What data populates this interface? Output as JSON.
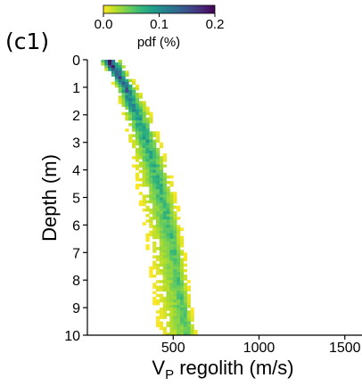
{
  "panel_label": "(c1)",
  "colorbar": {
    "label": "pdf (%)",
    "range": [
      0.0,
      0.2
    ],
    "ticks": [
      0.0,
      0.1,
      0.2
    ],
    "tick_labels": [
      "0.0",
      "0.1",
      "0.2"
    ],
    "colormap": "viridis-reversed",
    "stops": [
      "#fde725",
      "#b5de2b",
      "#6ece58",
      "#35b779",
      "#1f9e89",
      "#26828e",
      "#31688e",
      "#3e4989",
      "#482878",
      "#440154"
    ]
  },
  "chart_data": {
    "type": "heatmap",
    "title": "",
    "xlabel_main": "V",
    "xlabel_sub": "P",
    "xlabel_rest": " regolith (m/s)",
    "ylabel": "Depth (m)",
    "xlim": [
      0,
      1600
    ],
    "ylim": [
      10,
      0
    ],
    "y_inverted": true,
    "x_ticks": [
      500,
      1000,
      1500
    ],
    "x_tick_labels": [
      "500",
      "1000",
      "1500"
    ],
    "y_ticks": [
      0,
      1,
      2,
      3,
      4,
      5,
      6,
      7,
      8,
      9,
      10
    ],
    "y_tick_labels": [
      "0",
      "1",
      "2",
      "3",
      "4",
      "5",
      "6",
      "7",
      "8",
      "9",
      "10"
    ],
    "cell_size": {
      "depth_m": 0.1,
      "velocity_ms": 20
    },
    "ridge": {
      "description_depth_m": [
        0,
        0.5,
        1,
        2,
        3,
        4,
        5,
        6,
        7,
        8,
        9,
        10
      ],
      "left_edge_ms": [
        60,
        120,
        160,
        200,
        240,
        270,
        300,
        330,
        350,
        370,
        390,
        420
      ],
      "peak_ms": [
        120,
        170,
        220,
        290,
        350,
        400,
        440,
        480,
        510,
        535,
        560,
        590
      ],
      "right_edge_ms": [
        200,
        250,
        300,
        380,
        430,
        480,
        520,
        550,
        570,
        590,
        610,
        640
      ],
      "peak_pdf_percent": [
        0.2,
        0.17,
        0.14,
        0.1,
        0.09,
        0.08,
        0.075,
        0.07,
        0.065,
        0.06,
        0.06,
        0.06
      ]
    },
    "grid": false,
    "legend": "none"
  }
}
